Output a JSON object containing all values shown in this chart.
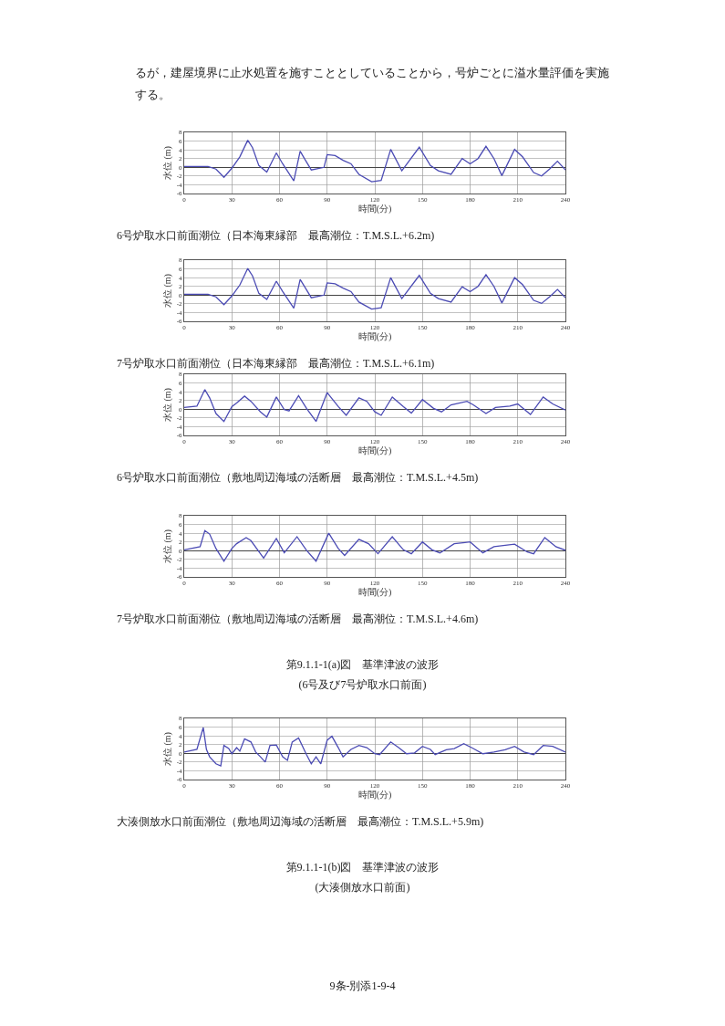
{
  "chart_data": [
    {
      "type": "line",
      "title": "6号炉取水口前面潮位（日本海東縁部　最高潮位：T.M.S.L.+6.2m)",
      "annotations": [
        "るが，建屋境界に止水処置を施すこととしていることから，号炉ごとに溢水量評価を実施する。"
      ],
      "xlabel": "時間(分)",
      "ylabel": "水位 (m)",
      "xlim": [
        0,
        240
      ],
      "xticks": [
        0,
        30,
        60,
        90,
        120,
        150,
        180,
        210,
        240
      ],
      "ylim": [
        -6,
        8
      ],
      "yticks": [
        -6,
        -4,
        -2,
        0,
        2,
        4,
        6,
        8
      ],
      "grid": true,
      "marker": "none",
      "line_style": "solid",
      "series": [
        {
          "color": "#4b4bb4",
          "x": [
            0,
            15,
            20,
            25,
            30,
            35,
            40,
            43,
            47,
            52,
            58,
            62,
            69,
            73,
            76,
            80,
            88,
            90,
            95,
            100,
            105,
            110,
            118,
            124,
            130,
            137,
            148,
            155,
            160,
            168,
            175,
            180,
            185,
            190,
            195,
            200,
            208,
            213,
            220,
            225,
            230,
            235,
            240
          ],
          "values": [
            0.2,
            0.2,
            -0.4,
            -2.3,
            -0.2,
            2.4,
            6.2,
            4.5,
            0.4,
            -1.1,
            3.3,
            0.8,
            -3.1,
            3.7,
            1.8,
            -0.6,
            0,
            2.9,
            2.7,
            1.6,
            0.8,
            -1.6,
            -3.3,
            -3.0,
            4.1,
            -0.8,
            4.6,
            0.4,
            -0.8,
            -1.6,
            2.0,
            0.8,
            2.0,
            4.8,
            2.0,
            -1.9,
            4.1,
            2.4,
            -1.2,
            -2.0,
            -0.4,
            1.4,
            -0.6
          ]
        }
      ]
    },
    {
      "type": "line",
      "title": "7号炉取水口前面潮位（日本海東縁部　最高潮位：T.M.S.L.+6.1m)",
      "xlabel": "時間(分)",
      "ylabel": "水位 (m)",
      "xlim": [
        0,
        240
      ],
      "xticks": [
        0,
        30,
        60,
        90,
        120,
        150,
        180,
        210,
        240
      ],
      "ylim": [
        -6,
        8
      ],
      "yticks": [
        -6,
        -4,
        -2,
        0,
        2,
        4,
        6,
        8
      ],
      "grid": true,
      "marker": "none",
      "line_style": "solid",
      "series": [
        {
          "color": "#4b4bb4",
          "x": [
            0,
            15,
            20,
            25,
            30,
            35,
            40,
            43,
            47,
            52,
            58,
            62,
            69,
            73,
            76,
            80,
            88,
            90,
            95,
            100,
            105,
            110,
            118,
            124,
            130,
            137,
            148,
            155,
            160,
            168,
            175,
            180,
            185,
            190,
            195,
            200,
            208,
            213,
            220,
            225,
            230,
            235,
            240
          ],
          "values": [
            0.2,
            0.2,
            -0.4,
            -2.2,
            -0.2,
            2.3,
            6.1,
            4.4,
            0.4,
            -1.0,
            3.2,
            0.8,
            -3.0,
            3.6,
            1.8,
            -0.6,
            0,
            2.8,
            2.6,
            1.6,
            0.8,
            -1.6,
            -3.2,
            -2.9,
            4.0,
            -0.8,
            4.5,
            0.4,
            -0.8,
            -1.6,
            1.9,
            0.8,
            2.0,
            4.7,
            2.0,
            -1.8,
            4.0,
            2.4,
            -1.2,
            -1.9,
            -0.4,
            1.3,
            -0.6
          ]
        }
      ]
    },
    {
      "type": "line",
      "title": "6号炉取水口前面潮位（敷地周辺海域の活断層　最高潮位：T.M.S.L.+4.5m)",
      "xlabel": "時間(分)",
      "ylabel": "水位 (m)",
      "xlim": [
        0,
        240
      ],
      "xticks": [
        0,
        30,
        60,
        90,
        120,
        150,
        180,
        210,
        240
      ],
      "ylim": [
        -6,
        8
      ],
      "yticks": [
        -6,
        -4,
        -2,
        0,
        2,
        4,
        6,
        8
      ],
      "grid": true,
      "marker": "none",
      "line_style": "solid",
      "series": [
        {
          "color": "#4b4bb4",
          "x": [
            0,
            8,
            13,
            16,
            20,
            25,
            30,
            33,
            38,
            42,
            48,
            52,
            58,
            63,
            66,
            72,
            77,
            83,
            90,
            97,
            102,
            110,
            115,
            120,
            124,
            131,
            138,
            143,
            150,
            157,
            162,
            168,
            178,
            182,
            190,
            196,
            205,
            210,
            218,
            226,
            232,
            240
          ],
          "values": [
            0.4,
            0.7,
            4.5,
            2.6,
            -1.0,
            -2.8,
            0.6,
            1.4,
            3.0,
            1.8,
            -0.6,
            -1.8,
            2.8,
            -0.1,
            -0.4,
            3.1,
            0.2,
            -2.8,
            3.8,
            0.6,
            -1.4,
            2.6,
            1.8,
            -0.6,
            -1.4,
            2.8,
            0.6,
            -0.9,
            2.2,
            0.2,
            -0.6,
            1.0,
            1.8,
            1.0,
            -1.0,
            0.4,
            0.7,
            1.2,
            -1.2,
            2.8,
            1.2,
            -0.2
          ]
        }
      ]
    },
    {
      "type": "line",
      "title": "7号炉取水口前面潮位（敷地周辺海域の活断層　最高潮位：T.M.S.L.+4.6m)",
      "annotations": [
        "第9.1.1-1(a)図　基準津波の波形",
        "(6号及び7号炉取水口前面)"
      ],
      "xlabel": "時間(分)",
      "ylabel": "水位 (m)",
      "xlim": [
        0,
        240
      ],
      "xticks": [
        0,
        30,
        60,
        90,
        120,
        150,
        180,
        210,
        240
      ],
      "ylim": [
        -6,
        8
      ],
      "yticks": [
        -6,
        -4,
        -2,
        0,
        2,
        4,
        6,
        8
      ],
      "grid": true,
      "marker": "none",
      "line_style": "solid",
      "series": [
        {
          "color": "#4b4bb4",
          "x": [
            0,
            10,
            13,
            16,
            20,
            25,
            30,
            33,
            39,
            42,
            48,
            50,
            58,
            63,
            71,
            77,
            83,
            91,
            97,
            101,
            110,
            116,
            122,
            131,
            138,
            143,
            150,
            156,
            161,
            170,
            180,
            188,
            195,
            208,
            216,
            220,
            227,
            234,
            240
          ],
          "values": [
            0.2,
            0.9,
            4.6,
            3.8,
            0.5,
            -2.4,
            0.5,
            1.6,
            3.0,
            2.3,
            -0.7,
            -1.7,
            2.8,
            -0.5,
            3.2,
            0.1,
            -2.4,
            4.0,
            0.5,
            -1.1,
            2.6,
            1.6,
            -0.7,
            3.2,
            0.2,
            -0.7,
            2.0,
            0.2,
            -0.5,
            1.6,
            2.0,
            -0.5,
            0.9,
            1.5,
            -0.3,
            -0.7,
            3.0,
            0.9,
            0.1
          ]
        }
      ]
    },
    {
      "type": "line",
      "title": "大湊側放水口前面潮位（敷地周辺海域の活断層　最高潮位：T.M.S.L.+5.9m)",
      "annotations": [
        "第9.1.1-1(b)図　基準津波の波形",
        "(大湊側放水口前面)",
        "9条-別添1-9-4"
      ],
      "xlabel": "時間(分)",
      "ylabel": "水位 (m)",
      "xlim": [
        0,
        240
      ],
      "xticks": [
        0,
        30,
        60,
        90,
        120,
        150,
        180,
        210,
        240
      ],
      "ylim": [
        -6,
        8
      ],
      "yticks": [
        -6,
        -4,
        -2,
        0,
        2,
        4,
        6,
        8
      ],
      "grid": true,
      "marker": "none",
      "line_style": "solid",
      "series": [
        {
          "color": "#4b4bb4",
          "x": [
            0,
            8,
            12,
            14,
            16,
            20,
            23,
            25,
            28,
            30,
            33,
            35,
            38,
            42,
            45,
            48,
            51,
            54,
            58,
            62,
            65,
            68,
            72,
            77,
            80,
            83,
            86,
            90,
            93,
            97,
            100,
            105,
            110,
            115,
            120,
            123,
            130,
            135,
            140,
            145,
            150,
            155,
            158,
            165,
            170,
            176,
            182,
            188,
            195,
            202,
            208,
            214,
            220,
            226,
            232,
            240
          ],
          "values": [
            0.3,
            0.9,
            5.9,
            0.9,
            -0.8,
            -2.4,
            -2.9,
            1.8,
            1.1,
            -0.1,
            1.3,
            0.5,
            3.3,
            2.6,
            0.3,
            -0.8,
            -2.0,
            1.8,
            1.9,
            -0.8,
            -1.6,
            2.6,
            3.5,
            -0.3,
            -2.4,
            -0.8,
            -2.4,
            3.0,
            3.9,
            1.3,
            -0.8,
            0.9,
            1.8,
            1.3,
            -0.1,
            -0.3,
            2.6,
            1.3,
            -0.1,
            0.1,
            1.6,
            0.9,
            -0.3,
            0.8,
            1.1,
            2.2,
            1.1,
            -0.1,
            0.3,
            0.8,
            1.6,
            0.3,
            -0.3,
            1.8,
            1.6,
            0.3
          ]
        }
      ]
    }
  ]
}
